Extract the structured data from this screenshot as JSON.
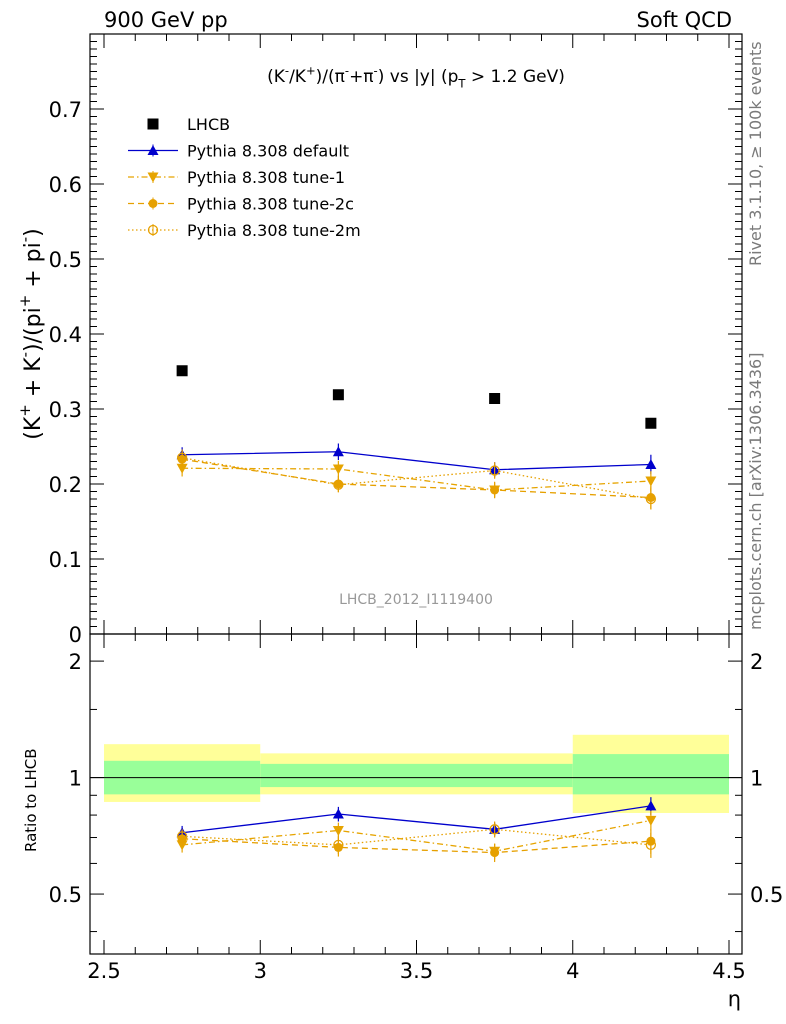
{
  "header": {
    "left": "900 GeV pp",
    "right": "Soft QCD"
  },
  "side_labels": {
    "rivet": "Rivet 3.1.10, ≥ 100k events",
    "mcplots": "mcplots.cern.ch [arXiv:1306.3436]"
  },
  "chart_data": [
    {
      "type": "scatter",
      "panel": "main",
      "title": "(K⁻/K⁺)/(π⁻+π⁻) vs |y| (p_T > 1.2 GeV)",
      "title_parts": [
        "(K",
        "-",
        "/K",
        "+",
        ")/(π",
        "-",
        "+π",
        "-",
        ") vs |y| (p",
        "T",
        " > 1.2 GeV)"
      ],
      "ylabel_parts": [
        "(K",
        "+",
        " + K",
        "-",
        ")/(pi",
        "+",
        " + pi",
        "-",
        ")"
      ],
      "watermark": "LHCB_2012_I1119400",
      "xlim": [
        2.5,
        4.5
      ],
      "ylim": [
        0,
        0.8
      ],
      "yticks": [
        0,
        0.1,
        0.2,
        0.3,
        0.4,
        0.5,
        0.6,
        0.7
      ],
      "ytick_labels": [
        "0",
        "0.1",
        "0.2",
        "0.3",
        "0.4",
        "0.5",
        "0.6",
        "0.7"
      ],
      "legend_position": "top-left",
      "x": [
        2.75,
        3.25,
        3.75,
        4.25
      ],
      "series": [
        {
          "name": "LHCB",
          "color": "#000000",
          "marker": "square",
          "values": [
            0.351,
            0.319,
            0.314,
            0.281
          ]
        },
        {
          "name": "Pythia 8.308 default",
          "color": "#0000cc",
          "marker": "triangle-up",
          "line": "solid",
          "values": [
            0.239,
            0.243,
            0.219,
            0.226
          ],
          "errors": [
            0.01,
            0.011,
            0.01,
            0.013
          ]
        },
        {
          "name": "Pythia 8.308 tune-1",
          "color": "#e6a400",
          "marker": "triangle-down",
          "line": "dashdot",
          "values": [
            0.221,
            0.22,
            0.192,
            0.204
          ],
          "errors": [
            0.011,
            0.011,
            0.01,
            0.013
          ]
        },
        {
          "name": "Pythia 8.308 tune-2c",
          "color": "#e6a000",
          "marker": "circle",
          "line": "dashed",
          "values": [
            0.233,
            0.2,
            0.192,
            0.182
          ],
          "errors": [
            0.011,
            0.011,
            0.011,
            0.015
          ]
        },
        {
          "name": "Pythia 8.308 tune-2m",
          "color": "#e6a000",
          "marker": "circle-open",
          "line": "dotted",
          "values": [
            0.235,
            0.199,
            0.218,
            0.18
          ],
          "errors": [
            0.011,
            0.01,
            0.011,
            0.014
          ]
        }
      ]
    },
    {
      "type": "line",
      "panel": "ratio",
      "ylabel": "Ratio to LHCB",
      "xlabel": "η",
      "xlim": [
        2.5,
        4.5
      ],
      "xticks": [
        2.5,
        3,
        3.5,
        4,
        4.5
      ],
      "xtick_labels": [
        "2.5",
        "3",
        "3.5",
        "4",
        "4.5"
      ],
      "ylim": [
        0.35,
        2.35
      ],
      "yscale": "log",
      "yticks": [
        0.5,
        1,
        2
      ],
      "ytick_labels": [
        "0.5",
        "1",
        "2"
      ],
      "x": [
        2.75,
        3.25,
        3.75,
        4.25
      ],
      "bins": [
        [
          2.5,
          3.0
        ],
        [
          3.0,
          4.0
        ],
        [
          4.0,
          4.5
        ]
      ],
      "band_inner": [
        [
          0.905,
          1.105
        ],
        [
          0.945,
          1.085
        ],
        [
          0.905,
          1.15
        ]
      ],
      "band_outer": [
        [
          0.865,
          1.22
        ],
        [
          0.905,
          1.155
        ],
        [
          0.81,
          1.29
        ]
      ],
      "series": [
        {
          "name": "Pythia 8.308 default",
          "color": "#0000cc",
          "marker": "triangle-up",
          "line": "solid",
          "values": [
            0.72,
            0.805,
            0.735,
            0.845
          ],
          "errors": [
            0.03,
            0.035,
            0.03,
            0.045
          ]
        },
        {
          "name": "Pythia 8.308 tune-1",
          "color": "#e6a400",
          "marker": "triangle-down",
          "line": "dashdot",
          "values": [
            0.67,
            0.73,
            0.645,
            0.775
          ],
          "errors": [
            0.03,
            0.035,
            0.03,
            0.045
          ]
        },
        {
          "name": "Pythia 8.308 tune-2c",
          "color": "#e6a000",
          "marker": "circle",
          "line": "dashed",
          "values": [
            0.695,
            0.66,
            0.64,
            0.685
          ],
          "errors": [
            0.03,
            0.035,
            0.035,
            0.05
          ]
        },
        {
          "name": "Pythia 8.308 tune-2m",
          "color": "#e6a000",
          "marker": "circle-open",
          "line": "dotted",
          "values": [
            0.705,
            0.67,
            0.735,
            0.67
          ],
          "errors": [
            0.03,
            0.035,
            0.035,
            0.05
          ]
        }
      ]
    }
  ]
}
